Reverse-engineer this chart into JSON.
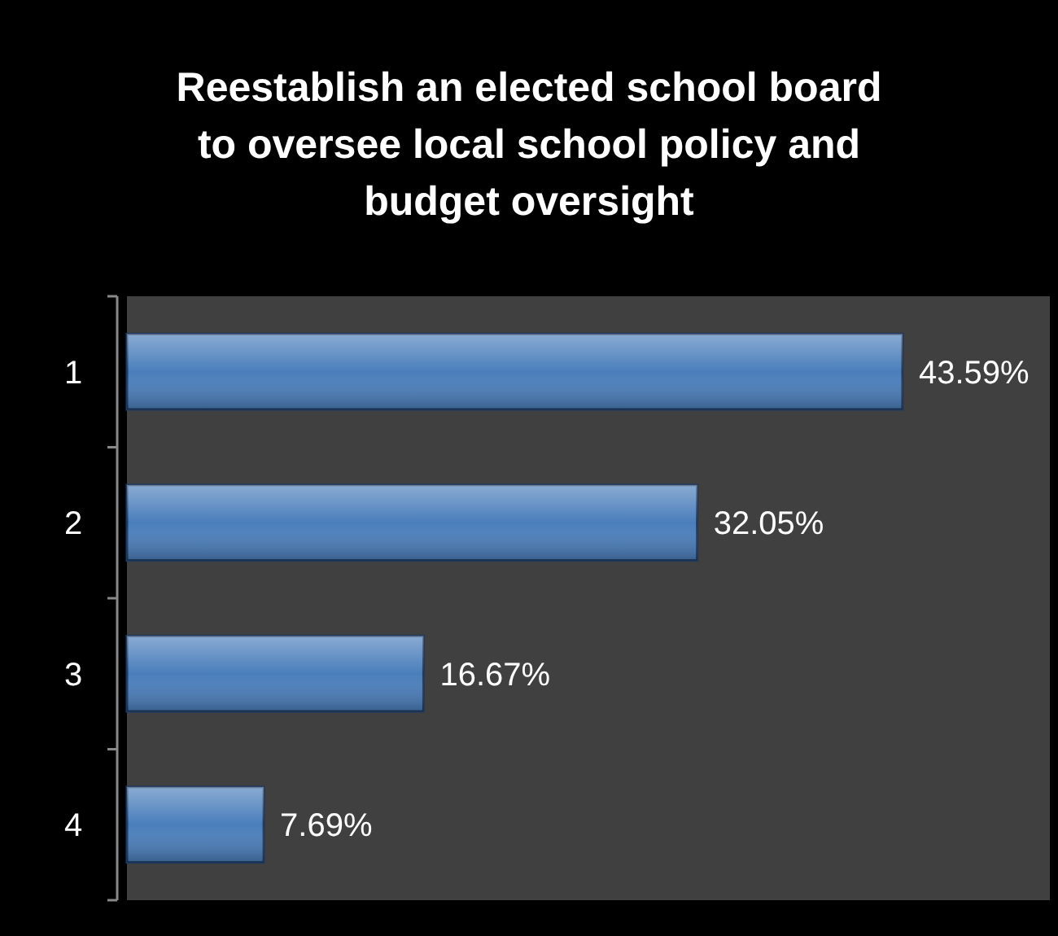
{
  "chart_data": {
    "type": "bar",
    "orientation": "horizontal",
    "title": "Reestablish an elected school board to oversee local school policy and budget oversight",
    "categories": [
      "1",
      "2",
      "3",
      "4"
    ],
    "value_labels": [
      "43.59%",
      "32.05%",
      "16.67%",
      "7.69%"
    ],
    "values": [
      43.59,
      32.05,
      16.67,
      7.69
    ],
    "color": "#4a7ebb"
  }
}
